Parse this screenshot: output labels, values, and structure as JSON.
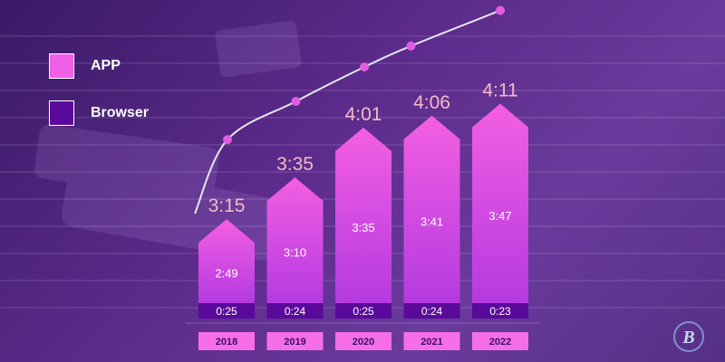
{
  "legend": [
    {
      "label": "APP",
      "color": "#f061e6"
    },
    {
      "label": "Browser",
      "color": "#5a0a9a"
    }
  ],
  "colors": {
    "app": "#f061e6",
    "browser": "#5a0a9a",
    "total_label": "#f5b9c4",
    "trend_line": "#e6e6ee",
    "trend_point": "#e25de0",
    "year_label_bg": "#f56ee8"
  },
  "logo": {
    "icon": "brand-logo-icon"
  },
  "chart_data": {
    "type": "bar",
    "categories": [
      "2018",
      "2019",
      "2020",
      "2021",
      "2022"
    ],
    "series": [
      {
        "name": "APP",
        "values": [
          "2:49",
          "3:10",
          "3:35",
          "3:41",
          "3:47"
        ]
      },
      {
        "name": "Browser",
        "values": [
          "0:25",
          "0:24",
          "0:25",
          "0:24",
          "0:23"
        ]
      }
    ],
    "totals": [
      "3:15",
      "3:35",
      "4:01",
      "4:06",
      "4:11"
    ],
    "trend_line": true,
    "legend_position": "top-left",
    "grid": false
  }
}
